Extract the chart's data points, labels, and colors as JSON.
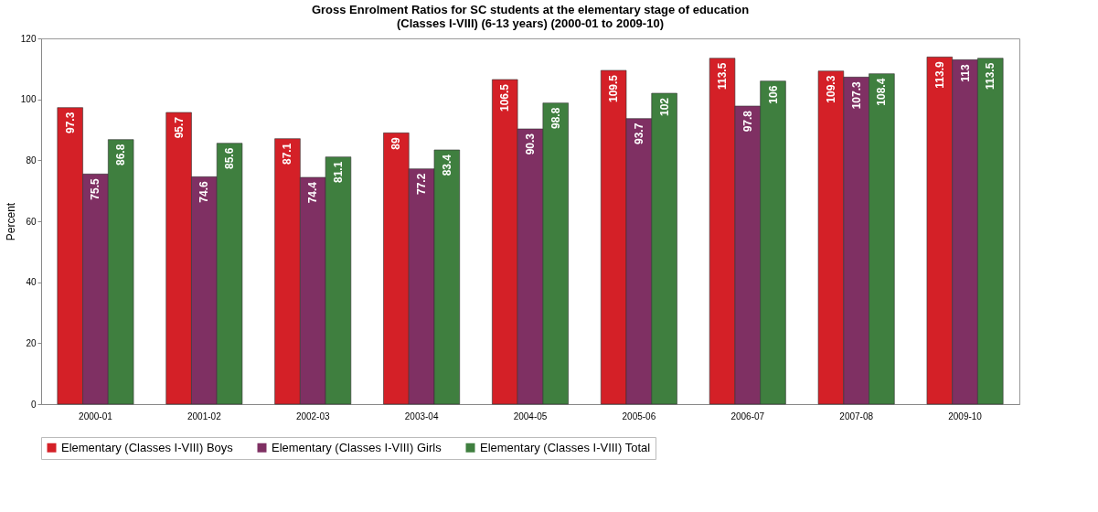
{
  "chart_data": {
    "type": "bar",
    "title": [
      "Gross Enrolment Ratios for SC students at the elementary stage of education",
      "(Classes I-VIII) (6-13 years) (2000-01 to 2009-10)"
    ],
    "ylabel": "Percent",
    "categories": [
      "2000-01",
      "2001-02",
      "2002-03",
      "2003-04",
      "2004-05",
      "2005-06",
      "2006-07",
      "2007-08",
      "2009-10"
    ],
    "series": [
      {
        "name": "Elementary (Classes I-VIII) Boys",
        "color": "#d42027",
        "values": [
          97.3,
          95.7,
          87.1,
          89,
          106.5,
          109.5,
          113.5,
          109.3,
          113.9
        ]
      },
      {
        "name": "Elementary (Classes I-VIII) Girls",
        "color": "#7f3063",
        "values": [
          75.5,
          74.6,
          74.4,
          77.2,
          90.3,
          93.7,
          97.8,
          107.3,
          113
        ]
      },
      {
        "name": "Elementary (Classes I-VIII) Total",
        "color": "#3f7f3f",
        "values": [
          86.8,
          85.6,
          81.1,
          83.4,
          98.8,
          102,
          106,
          108.4,
          113.5
        ]
      }
    ],
    "ylim": [
      0,
      120
    ],
    "yticks": [
      0,
      20,
      40,
      60,
      80,
      100,
      120
    ],
    "grid": false,
    "legend": "bottom",
    "data_labels": true
  }
}
